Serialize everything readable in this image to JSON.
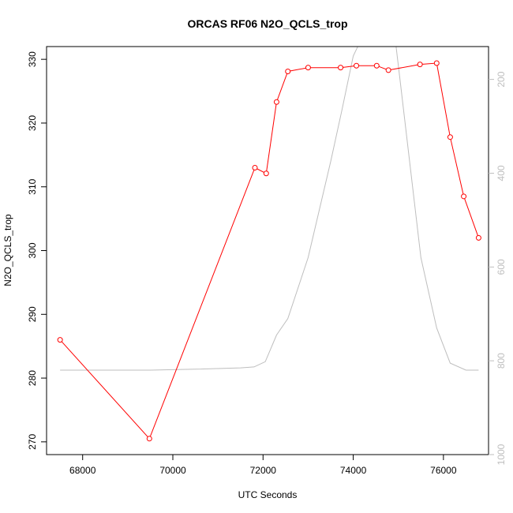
{
  "chart_data": {
    "type": "line",
    "title": "ORCAS RF06 N2O_QCLS_trop",
    "xlabel": "UTC Seconds",
    "ylabel": "N2O_QCLS_trop",
    "xlim": [
      67200,
      77000
    ],
    "ylim": [
      268,
      332
    ],
    "y2lim": [
      1000,
      130
    ],
    "x_ticks": [
      68000,
      70000,
      72000,
      74000,
      76000
    ],
    "y_ticks": [
      270,
      280,
      290,
      300,
      310,
      320,
      330
    ],
    "y2_ticks": [
      200,
      400,
      600,
      800,
      1000
    ],
    "grid": false,
    "series": [
      {
        "axis": "left",
        "color": "#ff0000",
        "marker": "open-circle",
        "x": [
          67500,
          69480,
          71820,
          72070,
          72300,
          72550,
          73000,
          73720,
          74070,
          74520,
          74780,
          75480,
          75850,
          76150,
          76450,
          76780
        ],
        "y": [
          286.0,
          270.5,
          313.0,
          312.1,
          323.3,
          328.1,
          328.7,
          328.7,
          329.0,
          329.0,
          328.3,
          329.2,
          329.4,
          317.8,
          308.5,
          302.0
        ]
      },
      {
        "axis": "right",
        "color": "#bebebe",
        "marker": "none",
        "x": [
          67500,
          68500,
          69500,
          70500,
          71500,
          71800,
          72050,
          72300,
          72550,
          73000,
          73500,
          73750,
          74000,
          74300,
          74900,
          75000,
          75500,
          75850,
          76150,
          76500,
          76780
        ],
        "y": [
          820,
          820,
          820,
          818,
          815,
          813,
          802,
          745,
          710,
          580,
          375,
          265,
          150,
          90,
          90,
          170,
          580,
          730,
          805,
          820,
          820
        ]
      }
    ]
  }
}
